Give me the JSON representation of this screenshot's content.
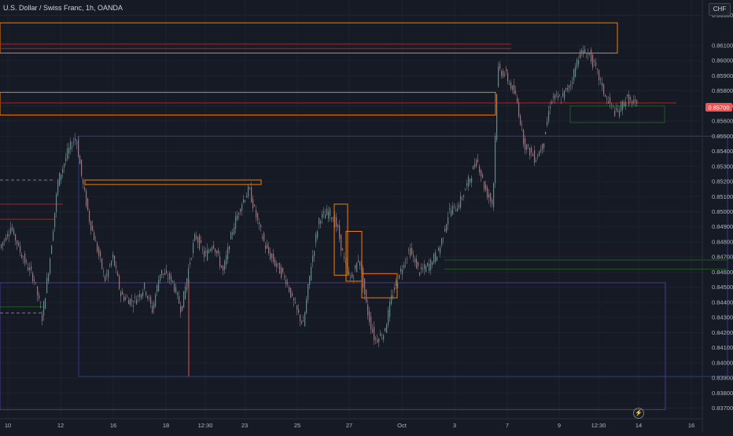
{
  "header": {
    "title": "U.S. Dollar / Swiss Franc, 1h, OANDA"
  },
  "price_axis": {
    "currency": "CHF"
  },
  "last_price": {
    "label": "0.85700"
  },
  "colors": {
    "background": "#161a25",
    "up": "#26a69a",
    "down": "#ef5350",
    "zone_orange": "#f57c00",
    "line_blue": "#2a3b8f",
    "line_red": "#b71c1c",
    "line_green": "#1b5e20",
    "line_purple": "#4a3a8a"
  },
  "icons": {
    "replay": "lightning-icon"
  },
  "chart_data": {
    "type": "candlestick",
    "title": "U.S. Dollar / Swiss Franc, 1h, OANDA",
    "xlabel": "",
    "ylabel": "",
    "ylim": [
      0.8363,
      0.8637
    ],
    "y_ticks": [
      0.863,
      0.861,
      0.86,
      0.859,
      0.858,
      0.857,
      0.856,
      0.855,
      0.854,
      0.853,
      0.852,
      0.851,
      0.85,
      0.849,
      0.848,
      0.847,
      0.846,
      0.845,
      0.844,
      0.843,
      0.842,
      0.841,
      0.84,
      0.839,
      0.838,
      0.837
    ],
    "y_tick_labels": [
      "0.86300",
      "0.86100",
      "0.86000",
      "0.85900",
      "0.85800",
      "0.85700",
      "0.85600",
      "0.85500",
      "0.85400",
      "0.85300",
      "0.85200",
      "0.85100",
      "0.85000",
      "0.84900",
      "0.84800",
      "0.84700",
      "0.84600",
      "0.84500",
      "0.84400",
      "0.84300",
      "0.84200",
      "0.84100",
      "0.84000",
      "0.83900",
      "0.83800",
      "0.83700"
    ],
    "x_range": [
      0,
      932
    ],
    "x_ticks": [
      {
        "x": 10,
        "label": "10"
      },
      {
        "x": 77,
        "label": "12"
      },
      {
        "x": 144,
        "label": "16"
      },
      {
        "x": 211,
        "label": "18"
      },
      {
        "x": 261,
        "label": "12:30"
      },
      {
        "x": 311,
        "label": "23"
      },
      {
        "x": 378,
        "label": "25"
      },
      {
        "x": 444,
        "label": "27"
      },
      {
        "x": 511,
        "label": "Oct"
      },
      {
        "x": 578,
        "label": "3"
      },
      {
        "x": 645,
        "label": "7"
      },
      {
        "x": 711,
        "label": "9"
      },
      {
        "x": 761,
        "label": "12:30"
      },
      {
        "x": 812,
        "label": "14"
      },
      {
        "x": 879,
        "label": "16"
      }
    ],
    "price_path": [
      [
        0,
        0.8475
      ],
      [
        15,
        0.849
      ],
      [
        30,
        0.847
      ],
      [
        45,
        0.8455
      ],
      [
        55,
        0.843
      ],
      [
        65,
        0.847
      ],
      [
        75,
        0.852
      ],
      [
        88,
        0.854
      ],
      [
        98,
        0.855
      ],
      [
        106,
        0.852
      ],
      [
        115,
        0.8495
      ],
      [
        125,
        0.8475
      ],
      [
        135,
        0.8455
      ],
      [
        145,
        0.847
      ],
      [
        155,
        0.8445
      ],
      [
        170,
        0.844
      ],
      [
        185,
        0.845
      ],
      [
        195,
        0.8435
      ],
      [
        205,
        0.846
      ],
      [
        220,
        0.8455
      ],
      [
        232,
        0.8435
      ],
      [
        242,
        0.8465
      ],
      [
        250,
        0.8485
      ],
      [
        262,
        0.847
      ],
      [
        272,
        0.848
      ],
      [
        285,
        0.846
      ],
      [
        298,
        0.849
      ],
      [
        308,
        0.8505
      ],
      [
        318,
        0.8515
      ],
      [
        328,
        0.8495
      ],
      [
        340,
        0.8475
      ],
      [
        352,
        0.8465
      ],
      [
        365,
        0.8455
      ],
      [
        378,
        0.8435
      ],
      [
        387,
        0.8425
      ],
      [
        397,
        0.8465
      ],
      [
        407,
        0.8495
      ],
      [
        420,
        0.85
      ],
      [
        430,
        0.849
      ],
      [
        440,
        0.8465
      ],
      [
        448,
        0.8455
      ],
      [
        458,
        0.847
      ],
      [
        468,
        0.8435
      ],
      [
        478,
        0.8415
      ],
      [
        490,
        0.842
      ],
      [
        500,
        0.8445
      ],
      [
        510,
        0.846
      ],
      [
        522,
        0.8475
      ],
      [
        535,
        0.846
      ],
      [
        548,
        0.8465
      ],
      [
        560,
        0.8475
      ],
      [
        572,
        0.85
      ],
      [
        585,
        0.8505
      ],
      [
        597,
        0.852
      ],
      [
        608,
        0.8535
      ],
      [
        618,
        0.8515
      ],
      [
        628,
        0.8505
      ],
      [
        634,
        0.8595
      ],
      [
        645,
        0.859
      ],
      [
        658,
        0.8575
      ],
      [
        668,
        0.8545
      ],
      [
        682,
        0.8535
      ],
      [
        692,
        0.8545
      ],
      [
        702,
        0.8575
      ],
      [
        715,
        0.8575
      ],
      [
        727,
        0.8585
      ],
      [
        738,
        0.8605
      ],
      [
        750,
        0.8605
      ],
      [
        762,
        0.859
      ],
      [
        772,
        0.8575
      ],
      [
        785,
        0.8565
      ],
      [
        798,
        0.8575
      ],
      [
        810,
        0.857
      ]
    ],
    "horizontal_lines": [
      {
        "y": 0.8505,
        "x1": 0,
        "x2": 80,
        "color": "red",
        "style": "solid"
      },
      {
        "y": 0.8495,
        "x1": 0,
        "x2": 70,
        "color": "red",
        "style": "solid"
      },
      {
        "y": 0.8521,
        "x1": 0,
        "x2": 70,
        "color": "grey",
        "style": "dashed"
      },
      {
        "y": 0.8433,
        "x1": 0,
        "x2": 55,
        "color": "grey",
        "style": "dashed"
      },
      {
        "y": 0.8437,
        "x1": 0,
        "x2": 55,
        "color": "green",
        "style": "solid"
      },
      {
        "y": 0.8611,
        "x1": 0,
        "x2": 650,
        "color": "red",
        "style": "solid"
      },
      {
        "y": 0.8608,
        "x1": 0,
        "x2": 650,
        "color": "red",
        "style": "solid"
      },
      {
        "y": 0.8572,
        "x1": 0,
        "x2": 860,
        "color": "red",
        "style": "solid"
      },
      {
        "y": 0.8468,
        "x1": 565,
        "x2": 925,
        "color": "green",
        "style": "solid"
      },
      {
        "y": 0.8462,
        "x1": 565,
        "x2": 925,
        "color": "green",
        "style": "solid"
      }
    ],
    "zones": [
      {
        "x1": 0,
        "x2": 785,
        "y1": 0.8605,
        "y2": 0.8625,
        "color": "orange"
      },
      {
        "x1": 0,
        "x2": 630,
        "y1": 0.8564,
        "y2": 0.8579,
        "color": "orange"
      },
      {
        "x1": 108,
        "x2": 332,
        "y1": 0.8518,
        "y2": 0.8521,
        "color": "orange"
      },
      {
        "x1": 425,
        "x2": 442,
        "y1": 0.8458,
        "y2": 0.8505,
        "color": "orange"
      },
      {
        "x1": 440,
        "x2": 460,
        "y1": 0.8454,
        "y2": 0.8487,
        "color": "orange"
      },
      {
        "x1": 460,
        "x2": 505,
        "y1": 0.8443,
        "y2": 0.8459,
        "color": "orange"
      },
      {
        "x1": 100,
        "x2": 925,
        "y1": 0.8391,
        "y2": 0.855,
        "color": "blue"
      },
      {
        "x1": 0,
        "x2": 846,
        "y1": 0.8369,
        "y2": 0.8453,
        "color": "purple"
      },
      {
        "x1": 725,
        "x2": 845,
        "y1": 0.8559,
        "y2": 0.857,
        "color": "green"
      }
    ]
  }
}
